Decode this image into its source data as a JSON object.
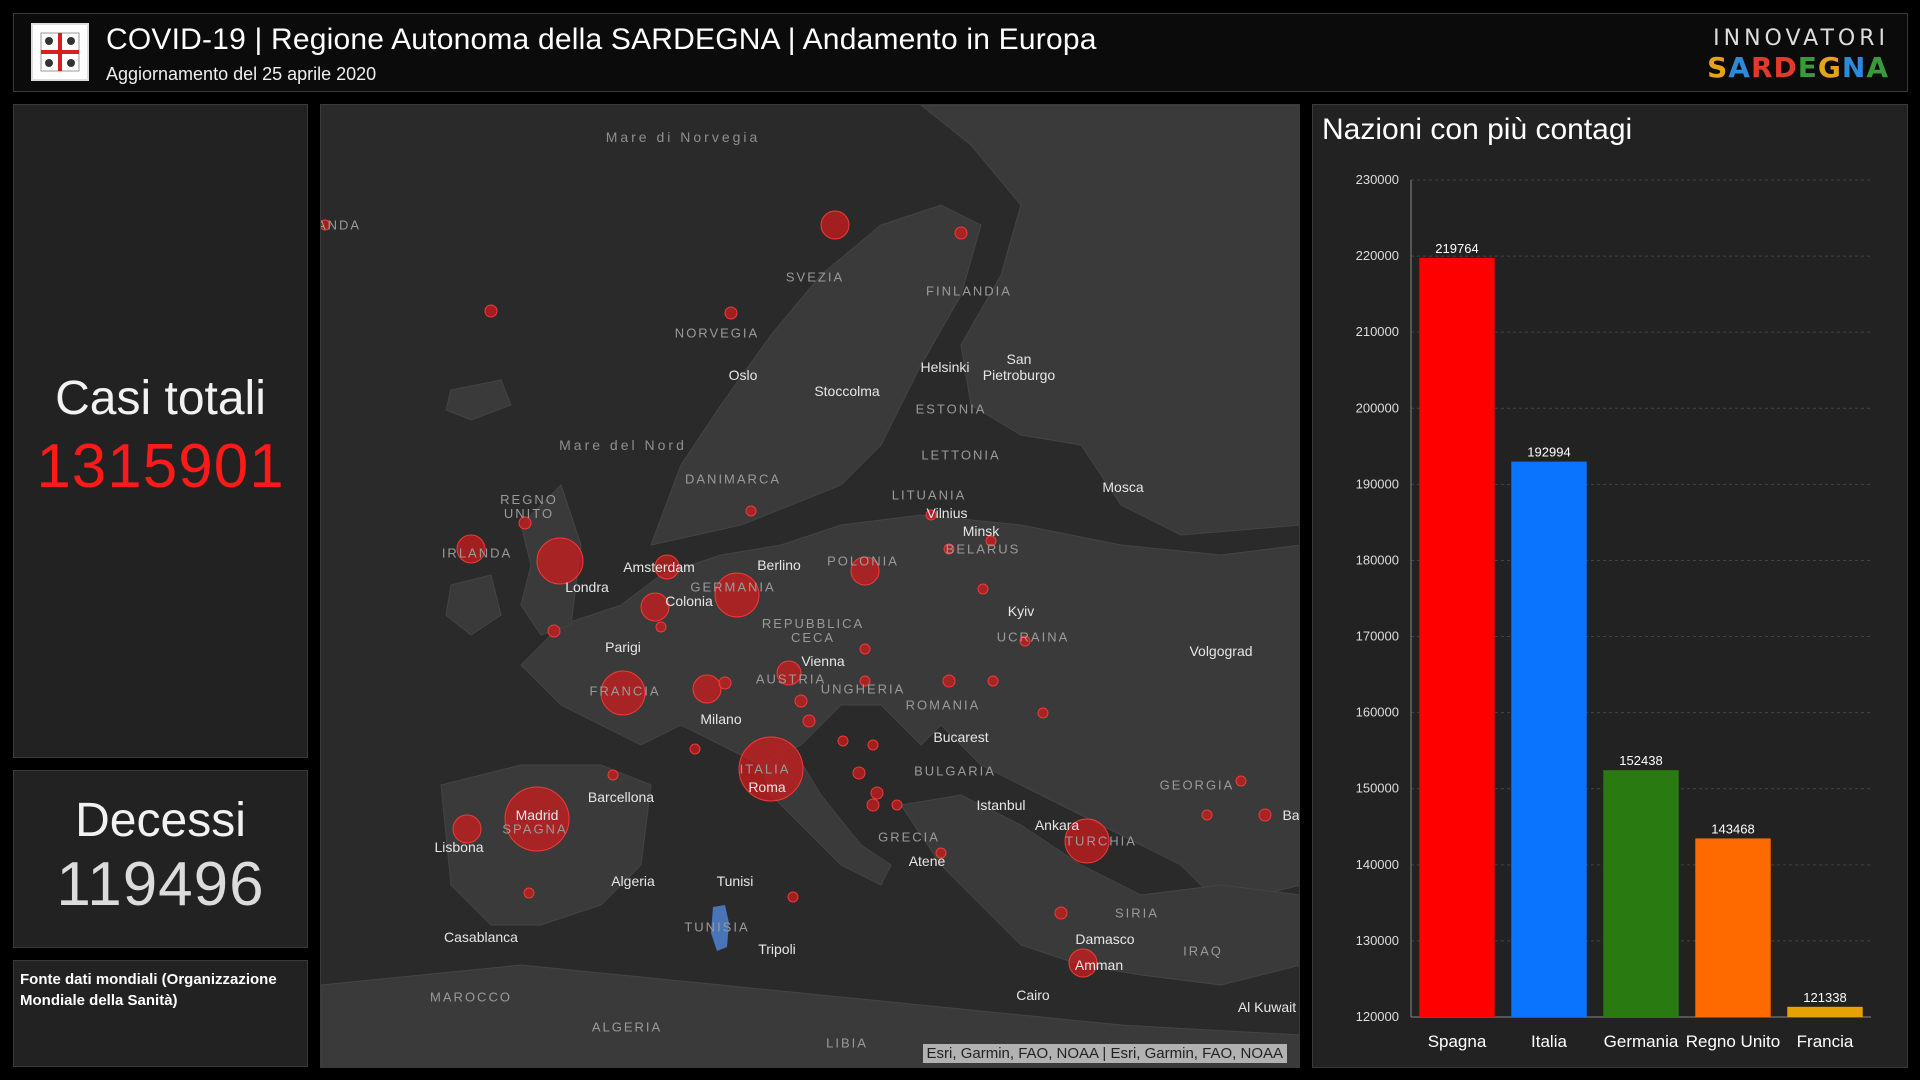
{
  "header": {
    "title": "COVID-19 | Regione Autonoma della SARDEGNA | Andamento in Europa",
    "subtitle": "Aggiornamento del 25 aprile 2020",
    "brand_top": "INNOVATORI",
    "brand_bottom_letters": [
      "S",
      "A",
      "R",
      "D",
      "E",
      "G",
      "N",
      "A"
    ],
    "brand_colors": [
      "#e8a21a",
      "#2e8ad8",
      "#e23a2a",
      "#e23a2a",
      "#3a9a3a",
      "#e8a21a",
      "#2e8ad8",
      "#3a9a3a"
    ]
  },
  "cases": {
    "label": "Casi totali",
    "value": "1315901",
    "color": "#ff1a1a"
  },
  "deaths": {
    "label": "Decessi",
    "value": "119496"
  },
  "source": {
    "text": "Fonte dati mondiali (Organizzazione Mondiale della Sanità)"
  },
  "map": {
    "attribution": "Esri, Garmin, FAO, NOAA | Esri, Garmin, FAO, NOAA",
    "seas": [
      {
        "key": "mare-norvegia",
        "text": "Mare di Norvegia"
      },
      {
        "key": "mare-nord",
        "text": "Mare del Nord"
      }
    ],
    "countries": [
      "ANDA",
      "SVEZIA",
      "FINLANDIA",
      "NORVEGIA",
      "ESTONIA",
      "LETTONIA",
      "DANIMARCA",
      "LITUANIA",
      "REGNO UNITO",
      "IRLANDA",
      "POLONIA",
      "BELARUS",
      "GERMANIA",
      "REPUBBLICA CECA",
      "UCRAINA",
      "AUSTRIA",
      "UNGHERIA",
      "FRANCIA",
      "ROMANIA",
      "BULGARIA",
      "ITALIA",
      "GEORGIA",
      "SPAGNA",
      "GRECIA",
      "TURCHIA",
      "SIRIA",
      "TUNISIA",
      "IRAQ",
      "MAROCCO",
      "ALGERIA",
      "LIBIA"
    ],
    "cities": [
      "Oslo",
      "Stoccolma",
      "Helsinki",
      "San Pietroburgo",
      "Mosca",
      "Vilnius",
      "Minsk",
      "Amsterdam",
      "Berlino",
      "Londra",
      "Colonia",
      "Parigi",
      "Kyiv",
      "Vienna",
      "Volgograd",
      "Milano",
      "Bucarest",
      "Roma",
      "Barcellona",
      "Madrid",
      "Istanbul",
      "Ankara",
      "Lisbona",
      "Algeria",
      "Tunisi",
      "Atene",
      "Casablanca",
      "Tripoli",
      "Damasco",
      "Amman",
      "Cairo",
      "Al Kuwait",
      "Ba"
    ]
  },
  "chart": {
    "title": "Nazioni con più contagi",
    "colors": [
      "#ff0000",
      "#0a74ff",
      "#2a7a12",
      "#ff6a00",
      "#e6a200"
    ]
  },
  "chart_data": {
    "type": "bar",
    "title": "Nazioni con più contagi",
    "categories": [
      "Spagna",
      "Italia",
      "Germania",
      "Regno Unito",
      "Francia"
    ],
    "values": [
      219764,
      192994,
      152438,
      143468,
      121338
    ],
    "ylim": [
      120000,
      230000
    ],
    "yticks": [
      120000,
      130000,
      140000,
      150000,
      160000,
      170000,
      180000,
      190000,
      200000,
      210000,
      220000,
      230000
    ],
    "grid": true
  }
}
